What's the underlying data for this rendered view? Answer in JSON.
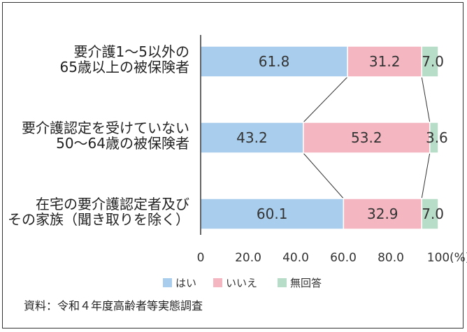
{
  "chart_data": {
    "type": "bar",
    "stacked": true,
    "orientation": "horizontal",
    "categories": [
      [
        "要介護1～5以外の",
        "65歳以上の被保険者"
      ],
      [
        "要介護認定を受けていない",
        "50～64歳の被保険者"
      ],
      [
        "在宅の要介護認定者及び",
        "その家族（聞き取りを除く）"
      ]
    ],
    "series": [
      {
        "name": "はい",
        "values": [
          61.8,
          43.2,
          60.1
        ],
        "color": "#a9cdec"
      },
      {
        "name": "いいえ",
        "values": [
          31.2,
          53.2,
          32.9
        ],
        "color": "#f4b7c2"
      },
      {
        "name": "無回答",
        "values": [
          7.0,
          3.6,
          7.0
        ],
        "color": "#b7dcc7"
      }
    ],
    "xlim": [
      0,
      100
    ],
    "xticks": [
      "0",
      "20.0",
      "40.0",
      "60.0",
      "80.0",
      "100"
    ],
    "xunit": "(%)",
    "connector_lines": true,
    "grid": false,
    "legend_position": "bottom"
  },
  "source_note": "資料：令和４年度高齢者等実態調査"
}
